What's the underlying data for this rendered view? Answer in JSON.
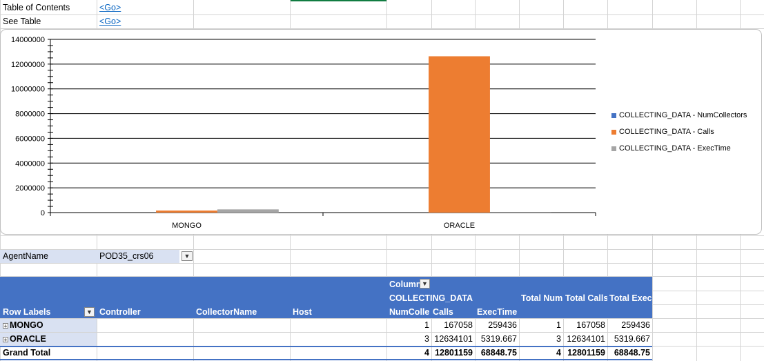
{
  "nav": {
    "toc_label": "Table of Contents",
    "toc_link": "<Go>",
    "see_label": "See Table",
    "see_link": "<Go>"
  },
  "colors": {
    "series1": "#4472c4",
    "series2": "#ed7d31",
    "series3": "#a5a5a5",
    "pivot_header": "#4472c4",
    "row_label_bg": "#d9e1f2",
    "link": "#0563c1"
  },
  "chart_data": {
    "type": "bar",
    "categories": [
      "MONGO",
      "ORACLE"
    ],
    "series": [
      {
        "name": "COLLECTING_DATA - NumCollectors",
        "values": [
          1,
          3
        ]
      },
      {
        "name": "COLLECTING_DATA - Calls",
        "values": [
          167058,
          12634101
        ]
      },
      {
        "name": "COLLECTING_DATA - ExecTime",
        "values": [
          259436,
          5319.667
        ]
      }
    ],
    "ylim": [
      0,
      14000000
    ],
    "yticks": [
      "0",
      "2000000",
      "4000000",
      "6000000",
      "8000000",
      "10000000",
      "12000000",
      "14000000"
    ],
    "legend_position": "right",
    "grid": true
  },
  "filter": {
    "label": "AgentName",
    "value": "POD35_crs06"
  },
  "pivot": {
    "column_labels": "Column",
    "group_label": "COLLECTING_DATA",
    "row_labels": "Row Labels",
    "headers": {
      "controller": "Controller",
      "collector_name": "CollectorName",
      "host": "Host",
      "num_collectors": "NumColle",
      "calls": "Calls",
      "exec_time": "ExecTime",
      "total_num": "Total Num",
      "total_calls": "Total Calls",
      "total_exec": "Total Exec"
    },
    "rows": [
      {
        "label": "MONGO",
        "num": "1",
        "calls": "167058",
        "exec": "259436",
        "tnum": "1",
        "tcalls": "167058",
        "texec": "259436"
      },
      {
        "label": "ORACLE",
        "num": "3",
        "calls": "12634101",
        "exec": "5319.667",
        "tnum": "3",
        "tcalls": "12634101",
        "texec": "5319.667"
      }
    ],
    "grand_total": {
      "label": "Grand Total",
      "num": "4",
      "calls": "12801159",
      "exec": "68848.75",
      "tnum": "4",
      "tcalls": "12801159",
      "texec": "68848.75"
    }
  }
}
